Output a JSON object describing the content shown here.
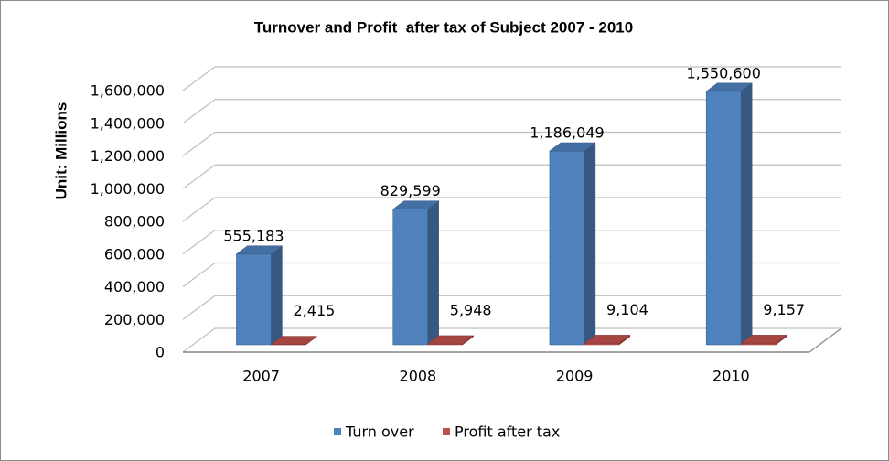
{
  "chart_data": {
    "type": "bar",
    "style": "3d-clustered-column",
    "title": "Turnover and Profit  after tax of Subject 2007 - 2010",
    "xlabel": "",
    "ylabel": "Unit: Millions",
    "categories": [
      "2007",
      "2008",
      "2009",
      "2010"
    ],
    "series": [
      {
        "name": "Turn over",
        "color": "#4F81BD",
        "values": [
          555183,
          829599,
          1186049,
          1550600
        ],
        "data_labels": [
          "555,183",
          "829,599",
          "1,186,049",
          "1,550,600"
        ]
      },
      {
        "name": "Profit after tax",
        "color": "#C0504D",
        "values": [
          2415,
          5948,
          9104,
          9157
        ],
        "data_labels": [
          "2,415",
          "5,948",
          "9,104",
          "9,157"
        ]
      }
    ],
    "ylim": [
      0,
      1600000
    ],
    "yticks": [
      0,
      200000,
      400000,
      600000,
      800000,
      1000000,
      1200000,
      1400000,
      1600000
    ],
    "ytick_labels": [
      "0",
      "200,000",
      "400,000",
      "600,000",
      "800,000",
      "1,000,000",
      "1,200,000",
      "1,400,000",
      "1,600,000"
    ],
    "grid": true,
    "legend": "bottom"
  },
  "colors": {
    "gridline": "#BFBFBF",
    "floor_edge": "#868686",
    "border": "#8C8C8C",
    "text": "#000000"
  }
}
